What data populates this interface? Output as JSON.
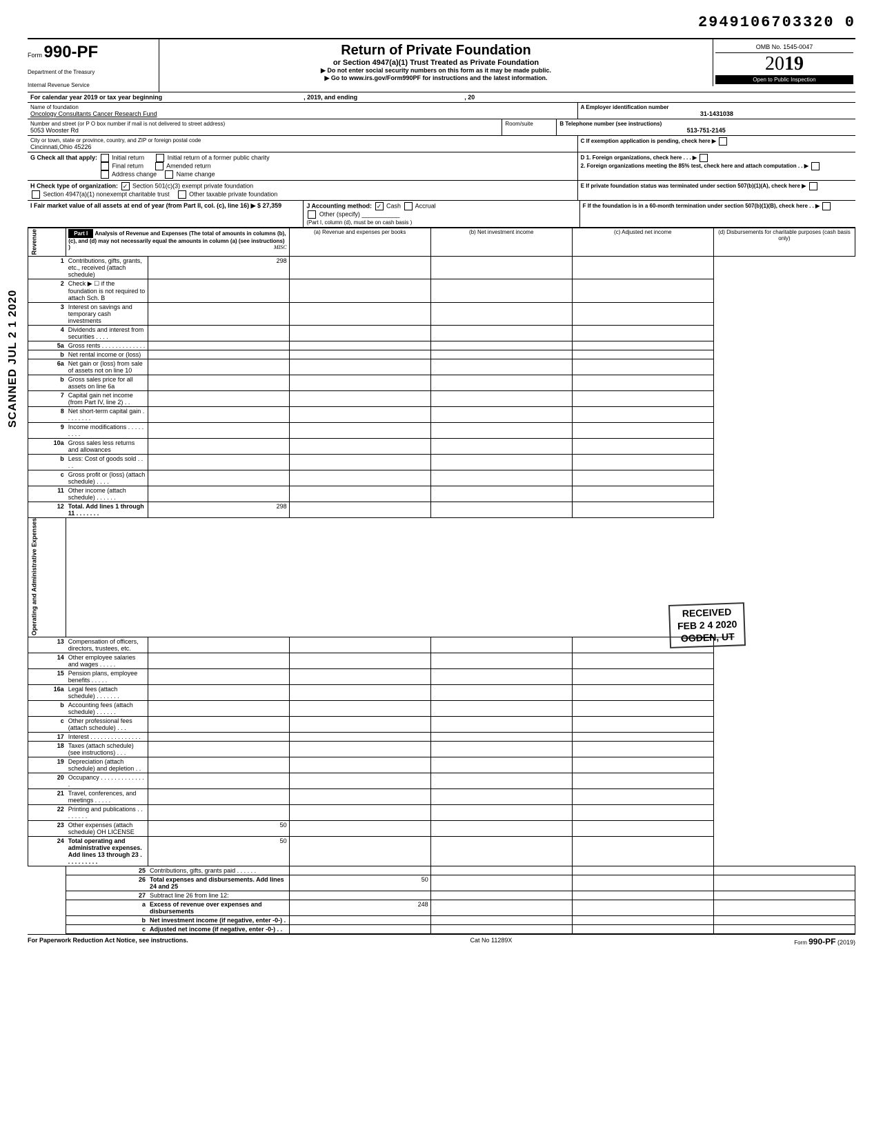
{
  "top_code": "2949106703320 0",
  "form": {
    "label": "Form",
    "number": "990-PF",
    "dept1": "Department of the Treasury",
    "dept2": "Internal Revenue Service"
  },
  "title": {
    "main": "Return of Private Foundation",
    "sub": "or Section 4947(a)(1) Trust Treated as Private Foundation",
    "instr1": "▶ Do not enter social security numbers on this form as it may be made public.",
    "instr2": "▶ Go to www.irs.gov/Form990PF for instructions and the latest information."
  },
  "yearbox": {
    "omb": "OMB No. 1545-0047",
    "year_prefix": "20",
    "year_suffix": "19",
    "inspection": "Open to Public Inspection"
  },
  "calendar_line": "For calendar year 2019 or tax year beginning",
  "calendar_mid": ", 2019, and ending",
  "calendar_end": ", 20",
  "id": {
    "name_label": "Name of foundation",
    "name": "Oncology Consultants Cancer Research Fund",
    "addr_label": "Number and street (or P O box number if mail is not delivered to street address)",
    "addr": "5053 Wooster Rd",
    "room_label": "Room/suite",
    "city_label": "City or town, state or province, country, and ZIP or foreign postal code",
    "city": "Cincinnati,Ohio 45226",
    "a_label": "A  Employer identification number",
    "a_val": "31-1431038",
    "b_label": "B  Telephone number (see instructions)",
    "b_val": "513-751-2145",
    "c_label": "C  If exemption application is pending, check here ▶"
  },
  "g": {
    "label": "G  Check all that apply:",
    "opts": [
      "Initial return",
      "Initial return of a former public charity",
      "Final return",
      "Amended return",
      "Address change",
      "Name change"
    ]
  },
  "h": {
    "label": "H  Check type of organization:",
    "opt1": "Section 501(c)(3) exempt private foundation",
    "opt2": "Section 4947(a)(1) nonexempt charitable trust",
    "opt3": "Other taxable private foundation"
  },
  "i": {
    "label": "I  Fair market value of all assets at end of year  (from Part II, col. (c), line 16) ▶ $",
    "val": "27,359"
  },
  "j": {
    "label": "J  Accounting method:",
    "cash": "Cash",
    "accrual": "Accrual",
    "other": "Other (specify)",
    "note": "(Part I, column (d), must be on cash basis )"
  },
  "d": {
    "d1": "D  1. Foreign organizations, check here . . . ▶",
    "d2": "2. Foreign organizations meeting the 85% test, check here and attach computation  . . ▶"
  },
  "e_label": "E  If private foundation status was terminated under section 507(b)(1)(A), check here",
  "f_label": "F  If the foundation is in a 60-month termination under section 507(b)(1)(B), check here  . . ▶",
  "part1": {
    "header": "Part I",
    "desc": "Analysis of Revenue and Expenses (The total of amounts in columns (b), (c), and (d) may not necessarily equal the amounts in column (a) (see instructions) )",
    "misc": "MISC",
    "cols": {
      "a": "(a) Revenue and expenses per books",
      "b": "(b) Net investment income",
      "c": "(c) Adjusted net income",
      "d": "(d) Disbursements for charitable purposes (cash basis only)"
    }
  },
  "sections": {
    "revenue": "Revenue",
    "expenses": "Operating and Administrative Expenses"
  },
  "lines": [
    {
      "n": "1",
      "d": "Contributions, gifts, grants, etc., received (attach schedule)",
      "a": "298"
    },
    {
      "n": "2",
      "d": "Check ▶ ☐ if the foundation is not required to attach Sch. B"
    },
    {
      "n": "3",
      "d": "Interest on savings and temporary cash investments"
    },
    {
      "n": "4",
      "d": "Dividends and interest from securities . . . ."
    },
    {
      "n": "5a",
      "d": "Gross rents . . . . . . . . . . . . ."
    },
    {
      "n": "b",
      "d": "Net rental income or (loss)"
    },
    {
      "n": "6a",
      "d": "Net gain or (loss) from sale of assets not on line 10"
    },
    {
      "n": "b",
      "d": "Gross sales price for all assets on line 6a"
    },
    {
      "n": "7",
      "d": "Capital gain net income (from Part IV, line 2) . ."
    },
    {
      "n": "8",
      "d": "Net short-term capital gain . . . . . . . ."
    },
    {
      "n": "9",
      "d": "Income modifications  . . . . . . . . ."
    },
    {
      "n": "10a",
      "d": "Gross sales less returns and allowances"
    },
    {
      "n": "b",
      "d": "Less: Cost of goods sold  . . . ."
    },
    {
      "n": "c",
      "d": "Gross profit or (loss) (attach schedule) . . . ."
    },
    {
      "n": "11",
      "d": "Other income (attach schedule)  . . . . . ."
    },
    {
      "n": "12",
      "d": "Total. Add lines 1 through 11 . . . . . . .",
      "a": "298",
      "bold": true
    },
    {
      "n": "13",
      "d": "Compensation of officers, directors, trustees, etc."
    },
    {
      "n": "14",
      "d": "Other employee salaries and wages . . . . ."
    },
    {
      "n": "15",
      "d": "Pension plans, employee benefits  . . . . ."
    },
    {
      "n": "16a",
      "d": "Legal fees (attach schedule)  . . . . . . ."
    },
    {
      "n": "b",
      "d": "Accounting fees (attach schedule) . . . . . ."
    },
    {
      "n": "c",
      "d": "Other professional fees (attach schedule) . . ."
    },
    {
      "n": "17",
      "d": "Interest . . . . . . . . . . . . . . ."
    },
    {
      "n": "18",
      "d": "Taxes (attach schedule) (see instructions) . . ."
    },
    {
      "n": "19",
      "d": "Depreciation (attach schedule) and depletion . ."
    },
    {
      "n": "20",
      "d": "Occupancy . . . . . . . . . . . . . ."
    },
    {
      "n": "21",
      "d": "Travel, conferences, and meetings  . . . . ."
    },
    {
      "n": "22",
      "d": "Printing and publications  . . . . . . . ."
    },
    {
      "n": "23",
      "d": "Other expenses (attach schedule) OH LICENSE",
      "a": "50"
    },
    {
      "n": "24",
      "d": "Total operating and administrative expenses. Add lines 13 through 23 . . . . . . . . . .",
      "a": "50",
      "bold": true
    },
    {
      "n": "25",
      "d": "Contributions, gifts, grants paid  . . . . . ."
    },
    {
      "n": "26",
      "d": "Total expenses and disbursements. Add lines 24 and 25",
      "a": "50",
      "bold": true
    },
    {
      "n": "27",
      "d": "Subtract line 26 from line 12:"
    },
    {
      "n": "a",
      "d": "Excess of revenue over expenses and disbursements",
      "a": "248",
      "bold": true
    },
    {
      "n": "b",
      "d": "Net investment income (if negative, enter -0-) .",
      "bold": true
    },
    {
      "n": "c",
      "d": "Adjusted net income (if negative, enter -0-) . .",
      "bold": true
    }
  ],
  "footer": {
    "left": "For Paperwork Reduction Act Notice, see instructions.",
    "mid": "Cat No 11289X",
    "right": "Form 990-PF (2019)"
  },
  "stamps": {
    "scanned": "SCANNED JUL 2 1 2020",
    "received_line1": "RECEIVED",
    "received_line2": "FEB 2 4 2020",
    "received_line3": "OGDEN, UT"
  }
}
